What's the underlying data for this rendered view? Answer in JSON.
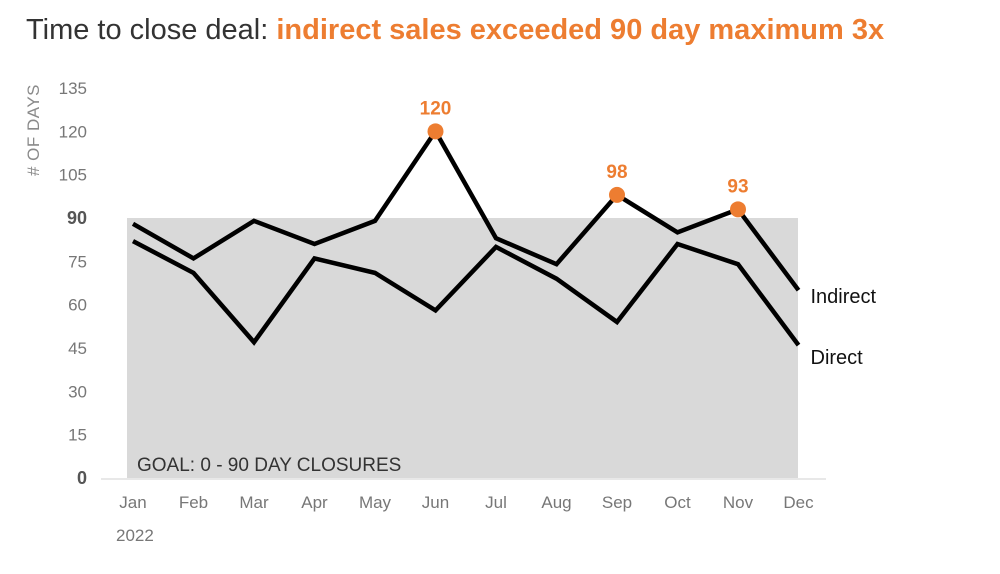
{
  "title": {
    "lead": "Time to close deal: ",
    "highlight": "indirect sales exceeded 90 day maximum 3x"
  },
  "colors": {
    "accent": "#ed7d31",
    "line": "#000000",
    "goal_band": "#d9d9d9",
    "text": "#333333",
    "axis_text": "#777777"
  },
  "chart_data": {
    "type": "line",
    "ylabel": "# OF DAYS",
    "ylim": [
      0,
      135
    ],
    "yticks": [
      0,
      15,
      30,
      45,
      60,
      75,
      90,
      105,
      120,
      135
    ],
    "bold_yticks": [
      0,
      90
    ],
    "categories": [
      "Jan",
      "Feb",
      "Mar",
      "Apr",
      "May",
      "Jun",
      "Jul",
      "Aug",
      "Sep",
      "Oct",
      "Nov",
      "Dec"
    ],
    "year_label": "2022",
    "goal_band": {
      "from": 0,
      "to": 90,
      "label": "GOAL: 0 - 90 DAY CLOSURES"
    },
    "series": [
      {
        "name": "Indirect",
        "values": [
          88,
          76,
          89,
          81,
          89,
          120,
          83,
          74,
          98,
          85,
          93,
          65
        ]
      },
      {
        "name": "Direct",
        "values": [
          82,
          71,
          47,
          76,
          71,
          58,
          80,
          69,
          54,
          81,
          74,
          46
        ]
      }
    ],
    "annotations": [
      {
        "series": "Indirect",
        "category": "Jun",
        "label": "120"
      },
      {
        "series": "Indirect",
        "category": "Sep",
        "label": "98"
      },
      {
        "series": "Indirect",
        "category": "Nov",
        "label": "93"
      }
    ],
    "grid": false,
    "legend": "direct labels at line ends"
  }
}
